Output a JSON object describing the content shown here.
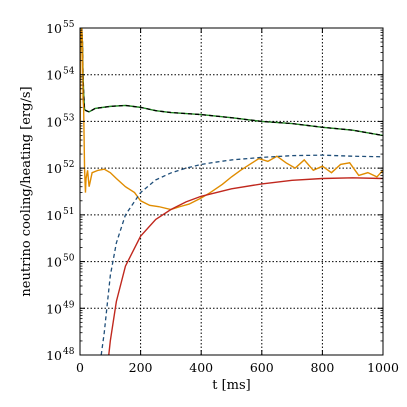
{
  "chart_data": {
    "type": "line",
    "xlabel": "t [ms]",
    "ylabel": "neutrino cooling/heating [erg/s]",
    "xlim": [
      0,
      1000
    ],
    "ylim": [
      1e+48,
      1e+55
    ],
    "yscale": "log",
    "grid": true,
    "x_ticks": [
      "0",
      "200",
      "400",
      "600",
      "800",
      "1000"
    ],
    "y_ticks": [
      {
        "exp": 48,
        "label": "10",
        "sup": "48"
      },
      {
        "exp": 49,
        "label": "10",
        "sup": "49"
      },
      {
        "exp": 50,
        "label": "10",
        "sup": "50"
      },
      {
        "exp": 51,
        "label": "10",
        "sup": "51"
      },
      {
        "exp": 52,
        "label": "10",
        "sup": "52"
      },
      {
        "exp": 53,
        "label": "10",
        "sup": "53"
      },
      {
        "exp": 54,
        "label": "10",
        "sup": "54"
      },
      {
        "exp": 55,
        "label": "10",
        "sup": "55"
      }
    ],
    "series": [
      {
        "color": "#228b22",
        "style": "solid",
        "x": [
          0,
          5,
          8,
          10,
          12,
          15,
          20,
          30,
          50,
          100,
          150,
          200,
          250,
          300,
          400,
          500,
          600,
          700,
          800,
          900,
          1000
        ],
        "y": [
          1e+55,
          1e+55,
          5e+54,
          1e+54,
          4e+53,
          1.8e+53,
          1.7e+53,
          1.6e+53,
          1.9e+53,
          2.1e+53,
          2.2e+53,
          2e+53,
          1.7e+53,
          1.55e+53,
          1.4e+53,
          1.2e+53,
          1e+53,
          9e+52,
          7.5e+52,
          6.5e+52,
          5e+52
        ]
      },
      {
        "color": "#000000",
        "style": "dashed",
        "x": [
          0,
          5,
          8,
          10,
          12,
          15,
          20,
          30,
          50,
          100,
          150,
          200,
          250,
          300,
          400,
          500,
          600,
          700,
          800,
          900,
          1000
        ],
        "y": [
          1e+55,
          1e+55,
          5e+54,
          1e+54,
          4e+53,
          1.8e+53,
          1.7e+53,
          1.6e+53,
          1.9e+53,
          2.1e+53,
          2.2e+53,
          2e+53,
          1.7e+53,
          1.55e+53,
          1.4e+53,
          1.2e+53,
          1e+53,
          9e+52,
          7.5e+52,
          6.5e+52,
          5e+52
        ]
      },
      {
        "color": "#e08c00",
        "style": "solid",
        "x": [
          0,
          3,
          6,
          8,
          10,
          12,
          15,
          18,
          20,
          25,
          30,
          40,
          60,
          80,
          100,
          120,
          150,
          180,
          200,
          230,
          260,
          300,
          330,
          360,
          400,
          430,
          470,
          500,
          530,
          560,
          590,
          620,
          650,
          680,
          710,
          740,
          770,
          800,
          830,
          860,
          890,
          920,
          950,
          980,
          1000
        ],
        "y": [
          2e+52,
          8e+54,
          1e+55,
          5e+54,
          3e+53,
          2e+53,
          1e+52,
          3e+51,
          6e+51,
          9e+51,
          4e+51,
          8e+51,
          9e+51,
          9.5e+51,
          8e+51,
          6e+51,
          4e+51,
          3e+51,
          2e+51,
          1.6e+51,
          1.5e+51,
          1.3e+51,
          1.5e+51,
          1.7e+51,
          2.3e+51,
          3e+51,
          4.5e+51,
          6.5e+51,
          9e+51,
          1.2e+52,
          1.6e+52,
          1.4e+52,
          1.8e+52,
          1.3e+52,
          1e+52,
          1.5e+52,
          9e+51,
          1.1e+52,
          8e+51,
          1.2e+52,
          1.3e+52,
          7e+51,
          8e+51,
          6.5e+51,
          9e+51
        ]
      },
      {
        "color": "#1f4e79",
        "style": "dashed",
        "x": [
          70,
          80,
          100,
          120,
          150,
          200,
          250,
          300,
          350,
          400,
          450,
          500,
          600,
          700,
          800,
          900,
          1000
        ],
        "y": [
          1e+48,
          3e+48,
          5e+49,
          2.5e+50,
          1e+51,
          3e+51,
          5.6e+51,
          7.9e+51,
          1e+52,
          1.2e+52,
          1.35e+52,
          1.5e+52,
          1.7e+52,
          1.85e+52,
          1.9e+52,
          1.8e+52,
          1.75e+52
        ]
      },
      {
        "color": "#c0281e",
        "style": "solid",
        "x": [
          95,
          100,
          120,
          150,
          200,
          250,
          300,
          350,
          400,
          450,
          500,
          600,
          700,
          800,
          900,
          1000
        ],
        "y": [
          1e+48,
          2e+48,
          1.4e+49,
          8e+49,
          3.5e+50,
          8e+50,
          1.3e+51,
          1.9e+51,
          2.5e+51,
          3e+51,
          3.6e+51,
          4.6e+51,
          5.5e+51,
          6e+51,
          6.2e+51,
          6e+51
        ]
      }
    ]
  }
}
